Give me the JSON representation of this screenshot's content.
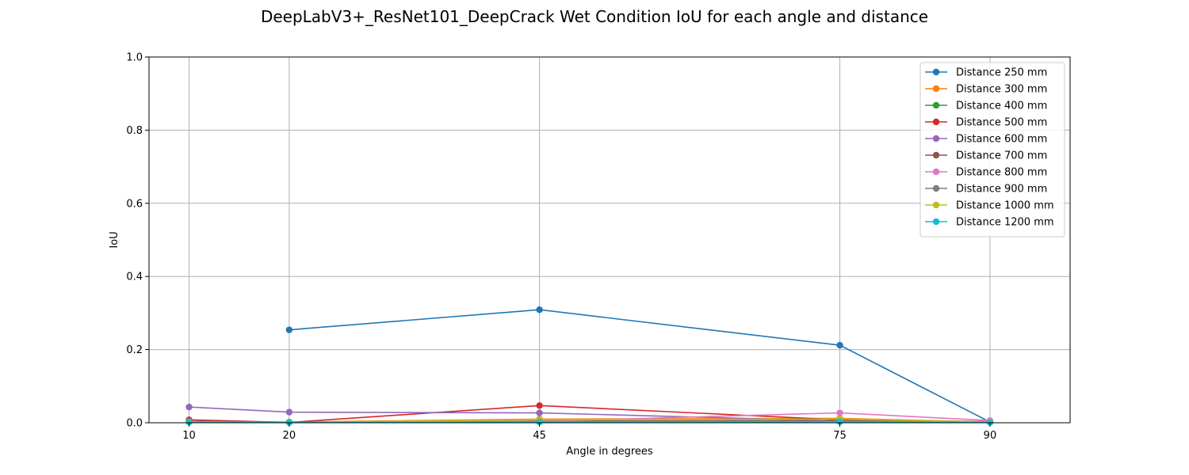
{
  "chart_data": {
    "type": "line",
    "title": "DeepLabV3+_ResNet101_DeepCrack Wet Condition IoU for each angle and distance",
    "xlabel": "Angle in degrees",
    "ylabel": "IoU",
    "xlim": [
      6,
      98
    ],
    "ylim": [
      0,
      1.0
    ],
    "xticks": [
      10,
      20,
      45,
      75,
      90
    ],
    "yticks": [
      0.0,
      0.2,
      0.4,
      0.6,
      0.8,
      1.0
    ],
    "ytick_labels": [
      "0.0",
      "0.2",
      "0.4",
      "0.6",
      "0.8",
      "1.0"
    ],
    "grid": true,
    "legend_position": "top-right",
    "series": [
      {
        "name": "Distance 250 mm",
        "color": "#1f77b4",
        "x": [
          20,
          45,
          75,
          90
        ],
        "y": [
          0.254,
          0.309,
          0.212,
          0.002
        ]
      },
      {
        "name": "Distance 300 mm",
        "color": "#ff7f0e",
        "x": [
          10,
          20,
          45,
          75,
          90
        ],
        "y": [
          0.003,
          0.002,
          0.01,
          0.012,
          0.002
        ]
      },
      {
        "name": "Distance 400 mm",
        "color": "#2ca02c",
        "x": [
          10,
          20,
          45,
          75,
          90
        ],
        "y": [
          0.002,
          0.001,
          0.003,
          0.004,
          0.001
        ]
      },
      {
        "name": "Distance 500 mm",
        "color": "#d62728",
        "x": [
          10,
          20,
          45,
          75,
          90
        ],
        "y": [
          0.008,
          0.001,
          0.047,
          0.008,
          0.003
        ]
      },
      {
        "name": "Distance 600 mm",
        "color": "#9467bd",
        "x": [
          10,
          20,
          45,
          75,
          90
        ],
        "y": [
          0.043,
          0.029,
          0.027,
          0.005,
          0.002
        ]
      },
      {
        "name": "Distance 700 mm",
        "color": "#8c564b",
        "x": [
          10,
          20,
          45,
          75,
          90
        ],
        "y": [
          0.004,
          0.001,
          0.005,
          0.006,
          0.002
        ]
      },
      {
        "name": "Distance 800 mm",
        "color": "#e377c2",
        "x": [
          10,
          20,
          45,
          75,
          90
        ],
        "y": [
          0.003,
          0.001,
          0.004,
          0.027,
          0.006
        ]
      },
      {
        "name": "Distance 900 mm",
        "color": "#7f7f7f",
        "x": [
          10,
          20,
          45,
          75,
          90
        ],
        "y": [
          0.002,
          0.001,
          0.003,
          0.004,
          0.001
        ]
      },
      {
        "name": "Distance 1000 mm",
        "color": "#bcbd22",
        "x": [
          10,
          20,
          45,
          75,
          90
        ],
        "y": [
          0.002,
          0.001,
          0.008,
          0.01,
          0.002
        ]
      },
      {
        "name": "Distance 1200 mm",
        "color": "#17becf",
        "x": [
          10,
          20,
          45,
          75,
          90
        ],
        "y": [
          0.002,
          0.001,
          0.002,
          0.003,
          0.001
        ]
      }
    ]
  }
}
